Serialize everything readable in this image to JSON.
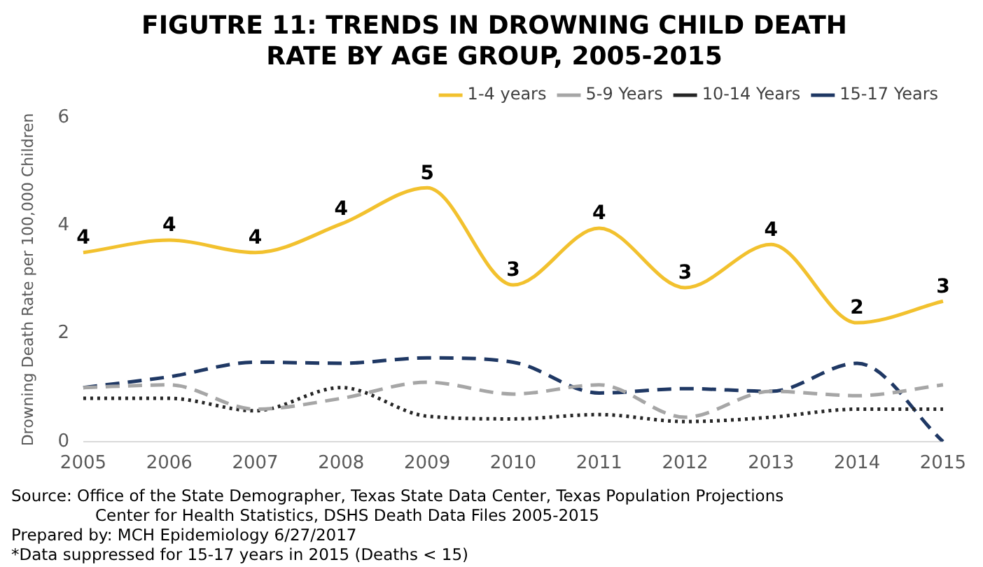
{
  "chart_data": {
    "type": "line",
    "title": "FIGUTRE 11: TRENDS IN DROWNING CHILD DEATH RATE BY AGE GROUP, 2005-2015",
    "ylabel": "Drowning Death Rate per 100,000 Children",
    "categories": [
      "2005",
      "2006",
      "2007",
      "2008",
      "2009",
      "2010",
      "2011",
      "2012",
      "2013",
      "2014",
      "2015"
    ],
    "series": [
      {
        "name": "1-4 years",
        "color": "#f2c12e",
        "line_style": "solid",
        "values": [
          3.5,
          3.73,
          3.5,
          4.03,
          4.7,
          2.9,
          3.95,
          2.85,
          3.65,
          2.2,
          2.6
        ],
        "value_labels": [
          "4",
          "4",
          "4",
          "4",
          "5",
          "3",
          "4",
          "3",
          "4",
          "2",
          "3"
        ]
      },
      {
        "name": "5-9 Years",
        "color": "#a6a6a6",
        "line_style": "dashed",
        "values": [
          1.0,
          1.05,
          0.6,
          0.8,
          1.1,
          0.88,
          1.05,
          0.45,
          0.93,
          0.85,
          1.05
        ]
      },
      {
        "name": "10-14 Years",
        "color": "#262626",
        "line_style": "dotted",
        "values": [
          0.8,
          0.8,
          0.57,
          1.0,
          0.47,
          0.42,
          0.5,
          0.37,
          0.45,
          0.6,
          0.6
        ]
      },
      {
        "name": "15-17 Years",
        "color": "#1f3864",
        "line_style": "dashed",
        "values": [
          1.0,
          1.2,
          1.47,
          1.45,
          1.55,
          1.47,
          0.9,
          0.98,
          0.93,
          1.45,
          0
        ]
      }
    ],
    "ylim": [
      0,
      6
    ],
    "yticks": [
      0,
      2,
      4,
      6
    ],
    "grid": false,
    "legend": "top right",
    "marker": "none",
    "annotations": [
      "Source: Office of the State Demographer, Texas State Data Center, Texas Population Projections\nCenter for Health Statistics, DSHS Death Data Files 2005-2015",
      "Prepared by: MCH Epidemiology 6/27/2017",
      "*Data suppressed for 15-17 years in 2015 (Deaths < 15)"
    ]
  }
}
